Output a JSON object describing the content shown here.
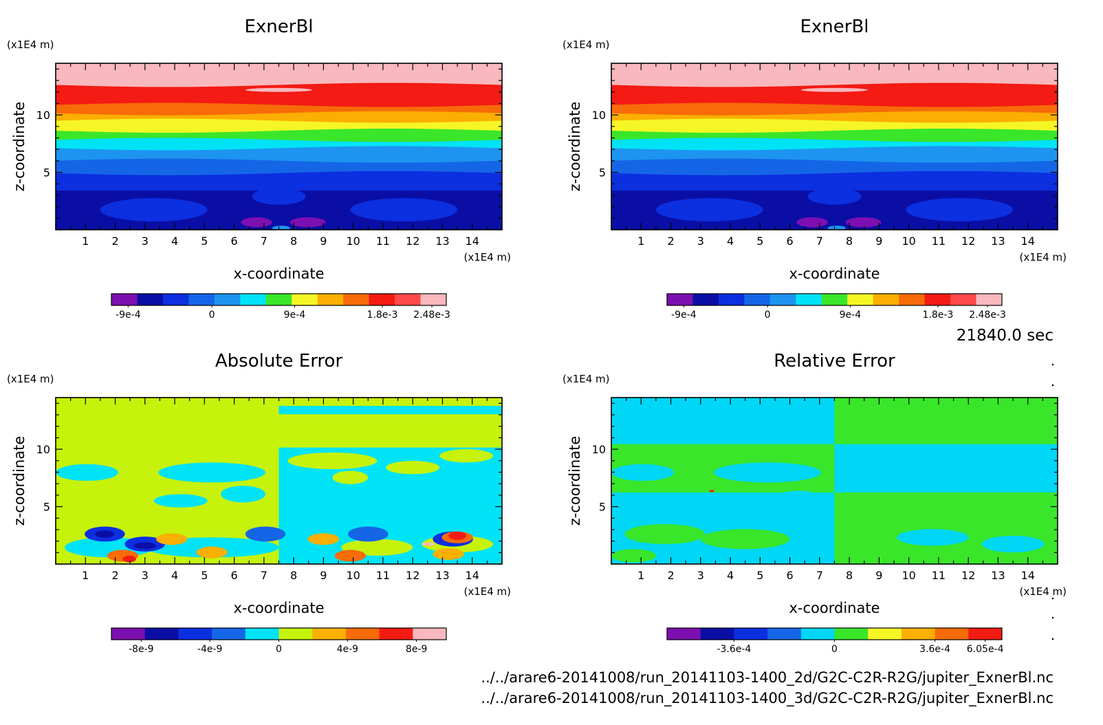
{
  "time_label": "21840.0 sec",
  "files": [
    "../../arare6-20141008/run_20141103-1400_2d/G2C-C2R-R2G/jupiter_ExnerBl.nc",
    "../../arare6-20141008/run_20141103-1400_3d/G2C-C2R-R2G/jupiter_ExnerBl.nc"
  ],
  "chart_data": [
    {
      "type": "heatmap",
      "title": "ExnerBl",
      "xlabel": "x-coordinate",
      "ylabel": "z-coordinate",
      "x_unit": "(x1E4 m)",
      "y_unit": "(x1E4 m)",
      "xlim": [
        0,
        15
      ],
      "ylim": [
        0,
        14.5
      ],
      "x_ticks": [
        "1",
        "2",
        "3",
        "4",
        "5",
        "6",
        "7",
        "8",
        "9",
        "10",
        "11",
        "12",
        "13",
        "14"
      ],
      "y_ticks": [
        "5",
        "10"
      ],
      "colorbar": {
        "colors": [
          "#7d0fb0",
          "#0a0ea5",
          "#0c2fe0",
          "#1566e6",
          "#1d94f0",
          "#00e3f6",
          "#3ae62a",
          "#f6f626",
          "#fbaf00",
          "#f76b09",
          "#f31b13",
          "#ff4a4a",
          "#f8b8bd"
        ],
        "tick_labels": [
          "-9e-4",
          "0",
          "9e-4",
          "1.8e-3",
          "2.48e-3"
        ]
      }
    },
    {
      "type": "heatmap",
      "title": "ExnerBl",
      "xlabel": "x-coordinate",
      "ylabel": "z-coordinate",
      "x_unit": "(x1E4 m)",
      "y_unit": "(x1E4 m)",
      "xlim": [
        0,
        15
      ],
      "ylim": [
        0,
        14.5
      ],
      "x_ticks": [
        "1",
        "2",
        "3",
        "4",
        "5",
        "6",
        "7",
        "8",
        "9",
        "10",
        "11",
        "12",
        "13",
        "14"
      ],
      "y_ticks": [
        "5",
        "10"
      ],
      "colorbar": {
        "colors": [
          "#7d0fb0",
          "#0a0ea5",
          "#0c2fe0",
          "#1566e6",
          "#1d94f0",
          "#00e3f6",
          "#3ae62a",
          "#f6f626",
          "#fbaf00",
          "#f76b09",
          "#f31b13",
          "#ff4a4a",
          "#f8b8bd"
        ],
        "tick_labels": [
          "-9e-4",
          "0",
          "9e-4",
          "1.8e-3",
          "2.48e-3"
        ]
      }
    },
    {
      "type": "heatmap",
      "title": "Absolute Error",
      "xlabel": "x-coordinate",
      "ylabel": "z-coordinate",
      "x_unit": "(x1E4 m)",
      "y_unit": "(x1E4 m)",
      "xlim": [
        0,
        15
      ],
      "ylim": [
        0,
        14.5
      ],
      "x_ticks": [
        "1",
        "2",
        "3",
        "4",
        "5",
        "6",
        "7",
        "8",
        "9",
        "10",
        "11",
        "12",
        "13",
        "14"
      ],
      "y_ticks": [
        "5",
        "10"
      ],
      "colorbar": {
        "colors": [
          "#7d0fb0",
          "#0a0ea5",
          "#0c2fe0",
          "#1566e6",
          "#00e3f6",
          "#c6f20c",
          "#fbaf00",
          "#f76b09",
          "#f31b13",
          "#f8b8bd"
        ],
        "tick_labels": [
          "-8e-9",
          "-4e-9",
          "0",
          "4e-9",
          "8e-9"
        ]
      }
    },
    {
      "type": "heatmap",
      "title": "Relative Error",
      "xlabel": "x-coordinate",
      "ylabel": "z-coordinate",
      "x_unit": "(x1E4 m)",
      "y_unit": "(x1E4 m)",
      "xlim": [
        0,
        15
      ],
      "ylim": [
        0,
        14.5
      ],
      "x_ticks": [
        "1",
        "2",
        "3",
        "4",
        "5",
        "6",
        "7",
        "8",
        "9",
        "10",
        "11",
        "12",
        "13",
        "14"
      ],
      "y_ticks": [
        "5",
        "10"
      ],
      "colorbar": {
        "colors": [
          "#7d0fb0",
          "#0a0ea5",
          "#0c2fe0",
          "#1566e6",
          "#00d6f6",
          "#3ae62a",
          "#f6f626",
          "#fbaf00",
          "#f76b09",
          "#f31b13"
        ],
        "tick_labels": [
          "-3.6e-4",
          "0",
          "3.6e-4",
          "6.05e-4"
        ]
      }
    }
  ]
}
